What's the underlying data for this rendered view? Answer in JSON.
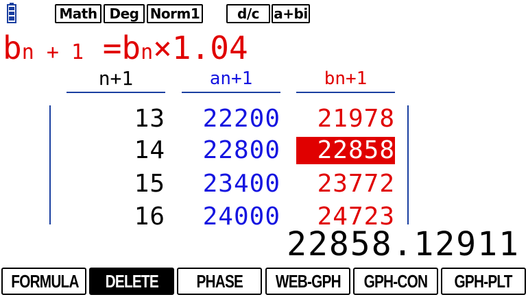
{
  "status_bar": {
    "battery_icon": "battery-icon",
    "modes": [
      "Math",
      "Deg",
      "Norm1",
      "d/c",
      "a+bi"
    ]
  },
  "formula": {
    "lhs_base": "b",
    "lhs_sub": "n + 1",
    "equals": " =",
    "rhs_base": "b",
    "rhs_sub": "n",
    "rhs_rest": "×1.04"
  },
  "table": {
    "headers": [
      "n+1",
      "an+1",
      "bn+1"
    ],
    "rows": [
      {
        "n": "13",
        "a": "22200",
        "b": "21978"
      },
      {
        "n": "14",
        "a": "22800",
        "b": "22858"
      },
      {
        "n": "15",
        "a": "23400",
        "b": "23772"
      },
      {
        "n": "16",
        "a": "24000",
        "b": "24723"
      }
    ],
    "selected_row": 1,
    "selected_column": "b"
  },
  "result_value": "22858.12911",
  "function_keys": [
    {
      "label": "FORMULA",
      "active": false
    },
    {
      "label": "DELETE",
      "active": true
    },
    {
      "label": "PHASE",
      "active": false
    },
    {
      "label": "WEB-GPH",
      "active": false
    },
    {
      "label": "GPH-CON",
      "active": false
    },
    {
      "label": "GPH-PLT",
      "active": false
    }
  ],
  "colors": {
    "red": "#e00000",
    "blue": "#1515e0",
    "frame": "#1a3fa0",
    "black": "#000000"
  }
}
